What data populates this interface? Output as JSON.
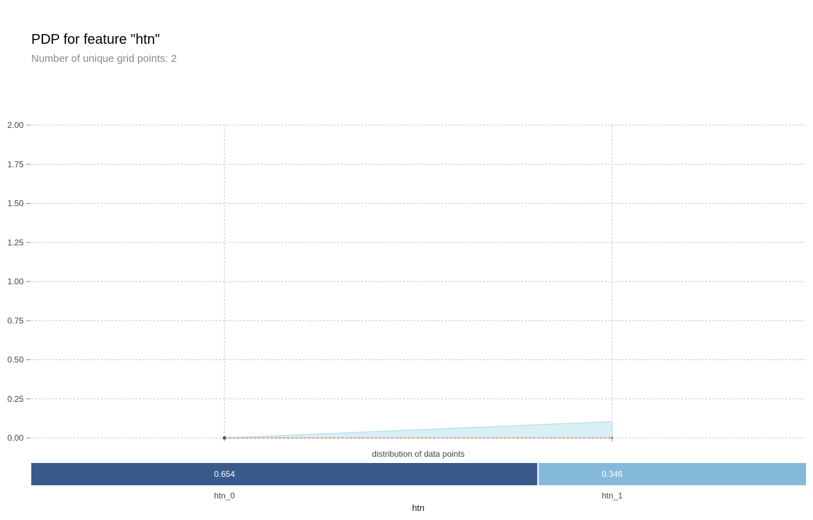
{
  "header": {
    "title": "PDP for feature \"htn\"",
    "subtitle": "Number of unique grid points: 2"
  },
  "chart_data": {
    "type": "line",
    "x": [
      "htn_0",
      "htn_1"
    ],
    "xlabel": "htn",
    "ylabel": "",
    "ylim": [
      0,
      2
    ],
    "yticks": [
      "0.00",
      "0.25",
      "0.50",
      "0.75",
      "1.00",
      "1.25",
      "1.50",
      "1.75",
      "2.00"
    ],
    "yticks_values": [
      0,
      0.25,
      0.5,
      0.75,
      1.0,
      1.25,
      1.5,
      1.75,
      2.0
    ],
    "series": [
      {
        "values": [
          0.0,
          0.0
        ],
        "upper": [
          0.0,
          0.105
        ],
        "lower": [
          0.0,
          0.0
        ]
      }
    ],
    "grid": true,
    "distribution": {
      "title": "distribution of data points",
      "categories": [
        "htn_0",
        "htn_1"
      ],
      "values": [
        0.654,
        0.346
      ],
      "labels": [
        "0.654",
        "0.346"
      ],
      "colors": [
        "#3a5a8c",
        "#85b9dc"
      ]
    },
    "colors": {
      "band": "#a9dbe6",
      "line": "#e0745a",
      "marker": "#3a5a8c",
      "grid": "#c8c8c8"
    }
  }
}
